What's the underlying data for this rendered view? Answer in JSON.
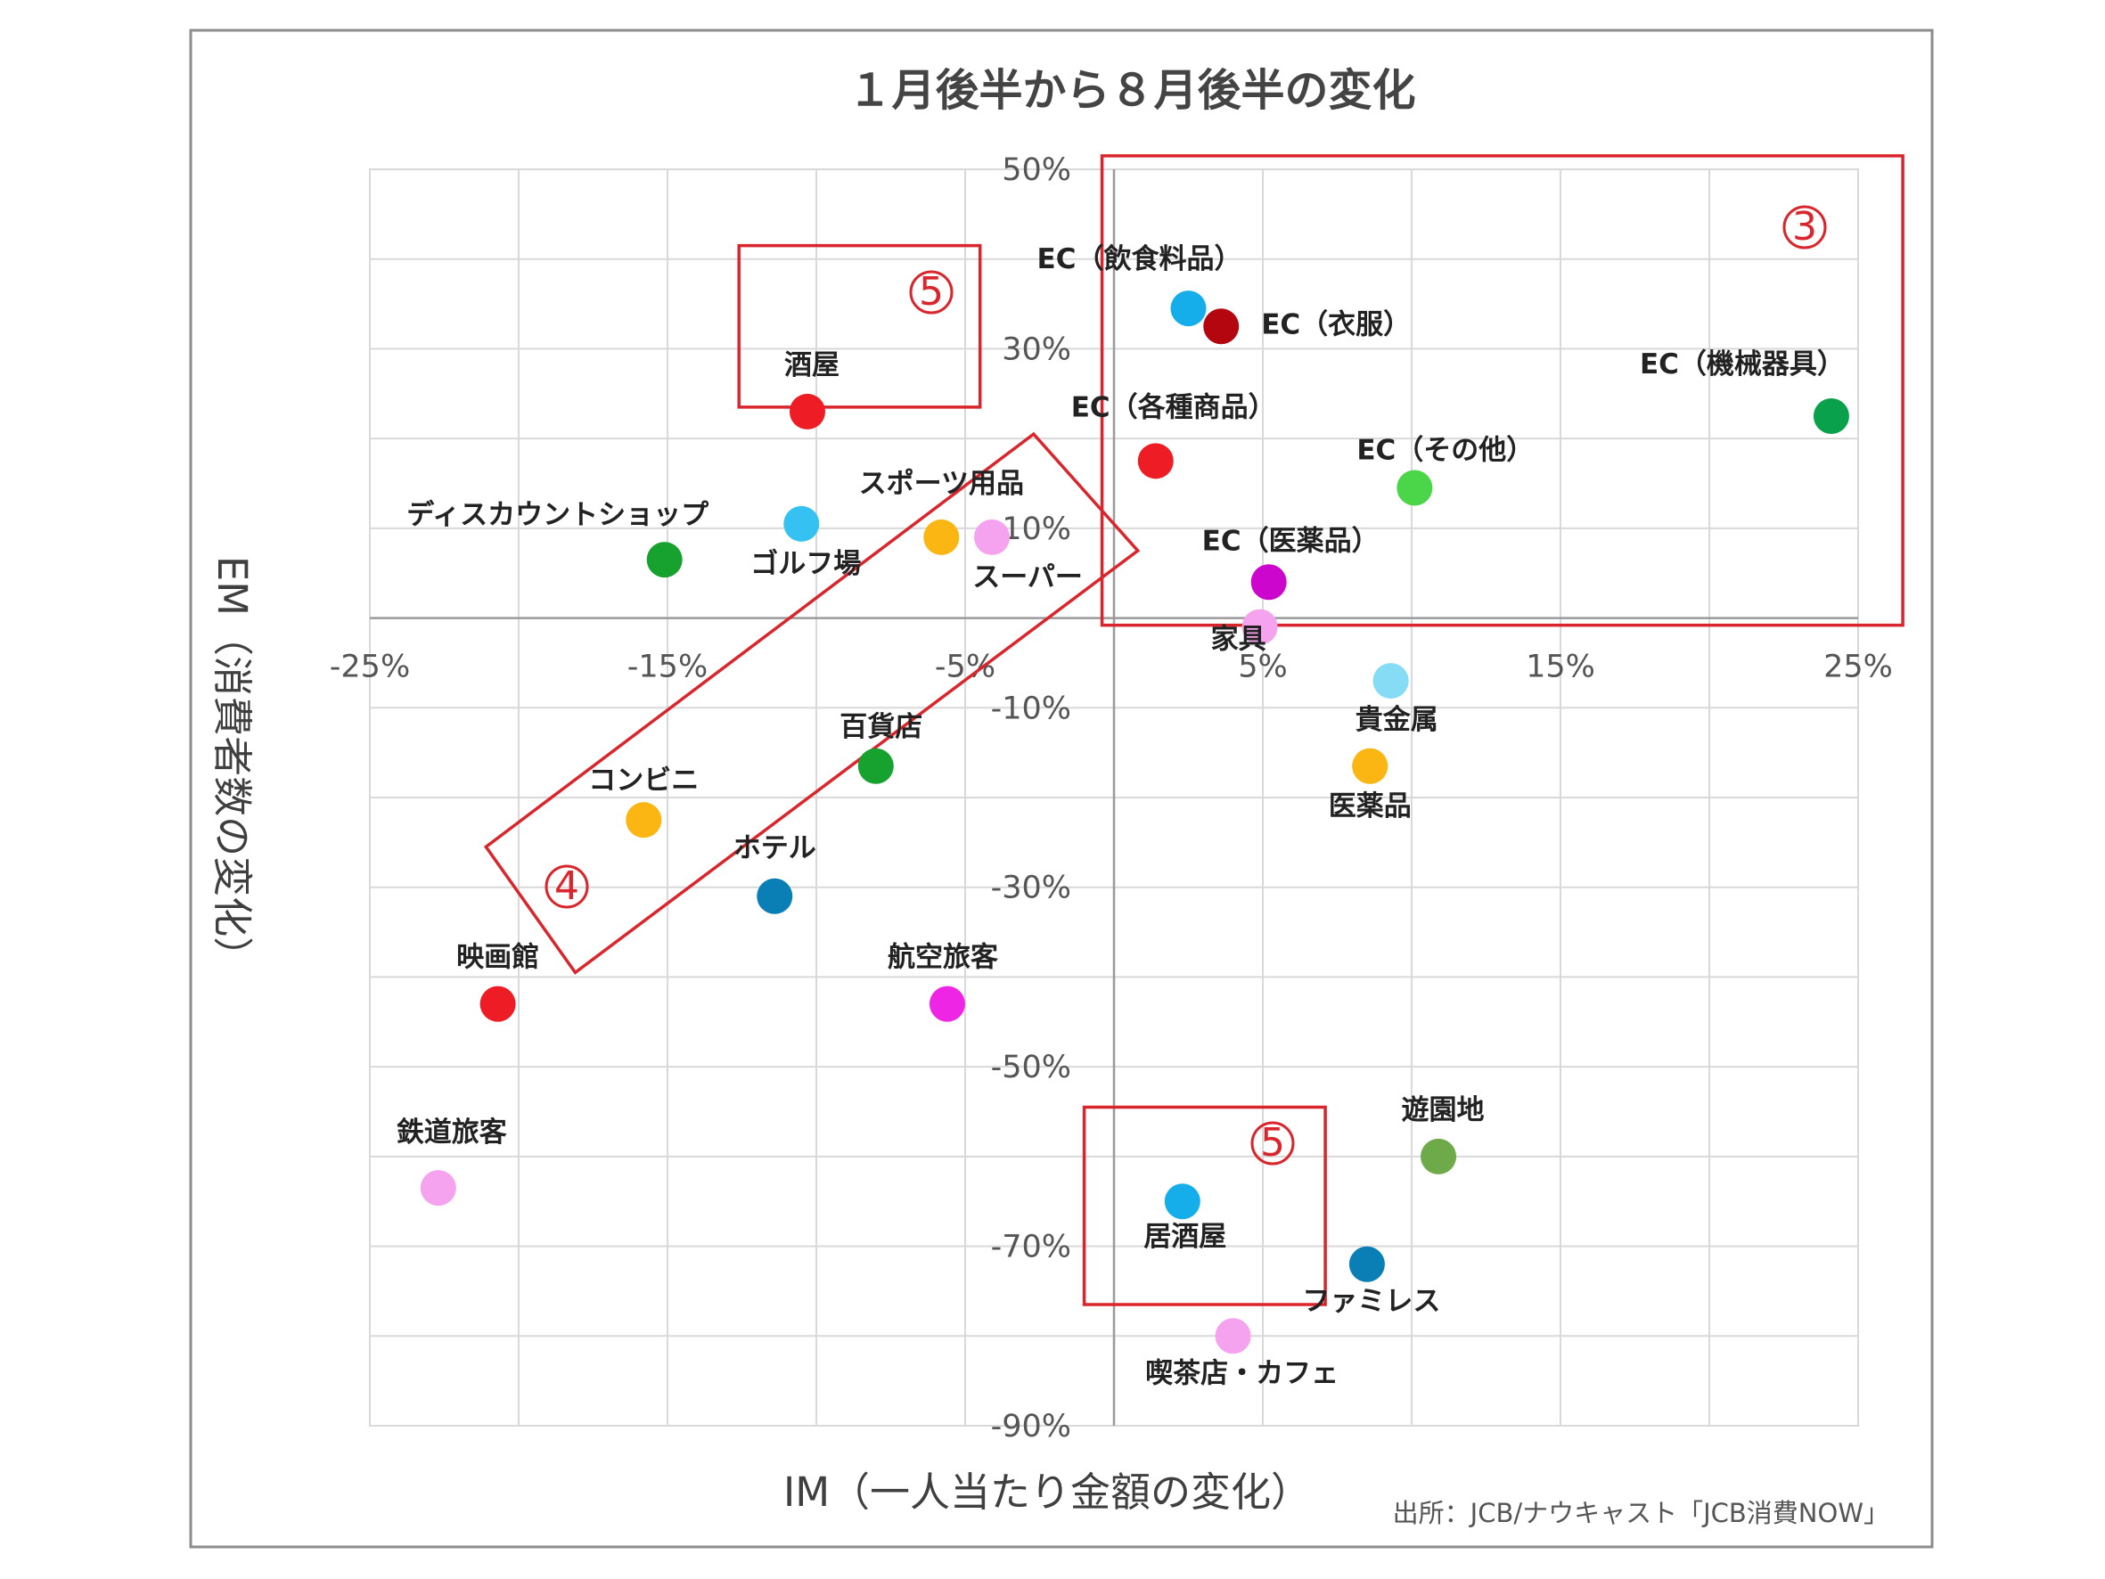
{
  "chart_data": {
    "type": "scatter",
    "title": "１月後半から８月後半の変化",
    "xlabel": "IM（一人当たり金額の変化）",
    "ylabel": "EM（消費者数の変化）",
    "xlim": [
      -25,
      25
    ],
    "ylim": [
      -90,
      50
    ],
    "x_ticks": [
      "-25%",
      "-15%",
      "-5%",
      "5%",
      "15%",
      "25%"
    ],
    "y_ticks": [
      "50%",
      "30%",
      "10%",
      "-10%",
      "-30%",
      "-50%",
      "-70%",
      "-90%"
    ],
    "grid": true,
    "source": "出所：JCB/ナウキャスト「JCB消費NOW」",
    "points": [
      {
        "label": "EC（飲食料品）",
        "x": 2.5,
        "y": 34.5,
        "color": "#16aeea"
      },
      {
        "label": "EC（衣服）",
        "x": 3.6,
        "y": 32.5,
        "color": "#b3060e"
      },
      {
        "label": "EC（機械器具）",
        "x": 24.1,
        "y": 22.5,
        "color": "#0aa14c"
      },
      {
        "label": "EC（各種商品）",
        "x": 1.4,
        "y": 17.5,
        "color": "#ee1c24"
      },
      {
        "label": "EC（その他）",
        "x": 10.1,
        "y": 14.5,
        "color": "#4bd64a"
      },
      {
        "label": "EC（医薬品）",
        "x": 5.2,
        "y": 4.0,
        "color": "#cc06cc"
      },
      {
        "label": "家具",
        "x": 4.9,
        "y": -1.0,
        "color": "#f5a3ef"
      },
      {
        "label": "酒屋",
        "x": -10.3,
        "y": 23.0,
        "color": "#ee1c24"
      },
      {
        "label": "ディスカウントショップ",
        "x": -15.1,
        "y": 6.5,
        "color": "#17a22f"
      },
      {
        "label": "ゴルフ場",
        "x": -10.5,
        "y": 10.5,
        "color": "#35c2f2"
      },
      {
        "label": "スポーツ用品",
        "x": -5.8,
        "y": 9.0,
        "color": "#fbb614"
      },
      {
        "label": "スーパー",
        "x": -4.1,
        "y": 9.0,
        "color": "#f5a3ef"
      },
      {
        "label": "",
        "x": 9.3,
        "y": -7.0,
        "color": "#86dcf5"
      },
      {
        "label": "貴金属",
        "x": 8.6,
        "y": -16.5,
        "color": "#fbb614"
      },
      {
        "label": "医薬品",
        "x": 8.6,
        "y": -16.5,
        "color": "#fbb614"
      },
      {
        "label": "百貨店",
        "x": -8.0,
        "y": -16.5,
        "color": "#17a22f"
      },
      {
        "label": "コンビニ",
        "x": -15.8,
        "y": -22.5,
        "color": "#fbb614"
      },
      {
        "label": "ホテル",
        "x": -11.4,
        "y": -31.0,
        "color": "#0a7fb5"
      },
      {
        "label": "映画館",
        "x": -20.7,
        "y": -43.0,
        "color": "#ee1c24"
      },
      {
        "label": "航空旅客",
        "x": -5.6,
        "y": -43.0,
        "color": "#ef25e5"
      },
      {
        "label": "遊園地",
        "x": 10.9,
        "y": -60.0,
        "color": "#6ea94a"
      },
      {
        "label": "鉄道旅客",
        "x": -22.7,
        "y": -63.5,
        "color": "#f5a3ef"
      },
      {
        "label": "居酒屋",
        "x": 2.3,
        "y": -65.0,
        "color": "#16aeea"
      },
      {
        "label": "ファミレス",
        "x": 8.5,
        "y": -72.0,
        "color": "#0a7fb5"
      },
      {
        "label": "喫茶店・カフェ",
        "x": 4.0,
        "y": -80.0,
        "color": "#f5a3ef"
      }
    ],
    "highlight_groups": [
      {
        "label": "③",
        "corners": [
          [
            -0.4,
            51.5
          ],
          [
            26.5,
            51.5
          ],
          [
            26.5,
            -0.8
          ],
          [
            -0.4,
            -0.8
          ]
        ]
      },
      {
        "label": "⑤",
        "corners": [
          [
            -12.6,
            41.5
          ],
          [
            -4.5,
            41.5
          ],
          [
            -4.5,
            23.5
          ],
          [
            -12.6,
            23.5
          ]
        ]
      },
      {
        "label": "⑤",
        "corners": [
          [
            -1.0,
            -54.5
          ],
          [
            7.1,
            -54.5
          ],
          [
            7.1,
            -76.5
          ],
          [
            -1.0,
            -76.5
          ]
        ]
      },
      {
        "label": "④",
        "corners": [
          [
            -21.1,
            -25.5
          ],
          [
            -2.7,
            20.5
          ],
          [
            0.8,
            7.5
          ],
          [
            -18.1,
            -39.5
          ]
        ]
      }
    ]
  }
}
